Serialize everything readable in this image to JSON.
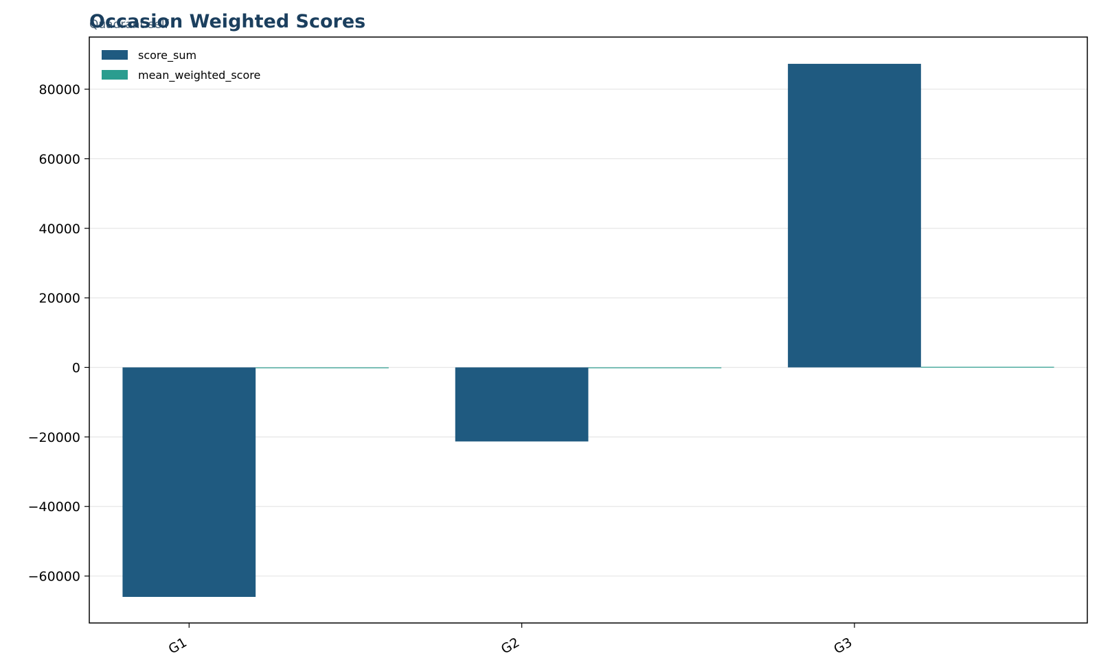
{
  "chart_data": {
    "type": "bar",
    "title": "Occasion Weighted Scores",
    "subtitle": "Quadrant self",
    "xlabel": "",
    "ylabel": "",
    "categories": [
      "G1",
      "G2",
      "G3"
    ],
    "series": [
      {
        "name": "score_sum",
        "values": [
          -66000,
          -21300,
          87300
        ],
        "color": "#1f5a80"
      },
      {
        "name": "mean_weighted_score",
        "values": [
          -150,
          -120,
          170
        ],
        "color": "#2a9d8f"
      }
    ],
    "ylim": [
      -73500,
      95000
    ],
    "yticks": [
      -60000,
      -40000,
      -20000,
      0,
      20000,
      40000,
      60000,
      80000
    ],
    "ytick_labels": [
      "−60000",
      "−40000",
      "−20000",
      "0",
      "20000",
      "40000",
      "60000",
      "80000"
    ],
    "grid": "horizontal",
    "legend_position": "top-left",
    "colors": {
      "title": "#1b3f5e",
      "subtitle": "#4a6277",
      "grid": "#e6e6e6",
      "axis": "#000000"
    }
  }
}
